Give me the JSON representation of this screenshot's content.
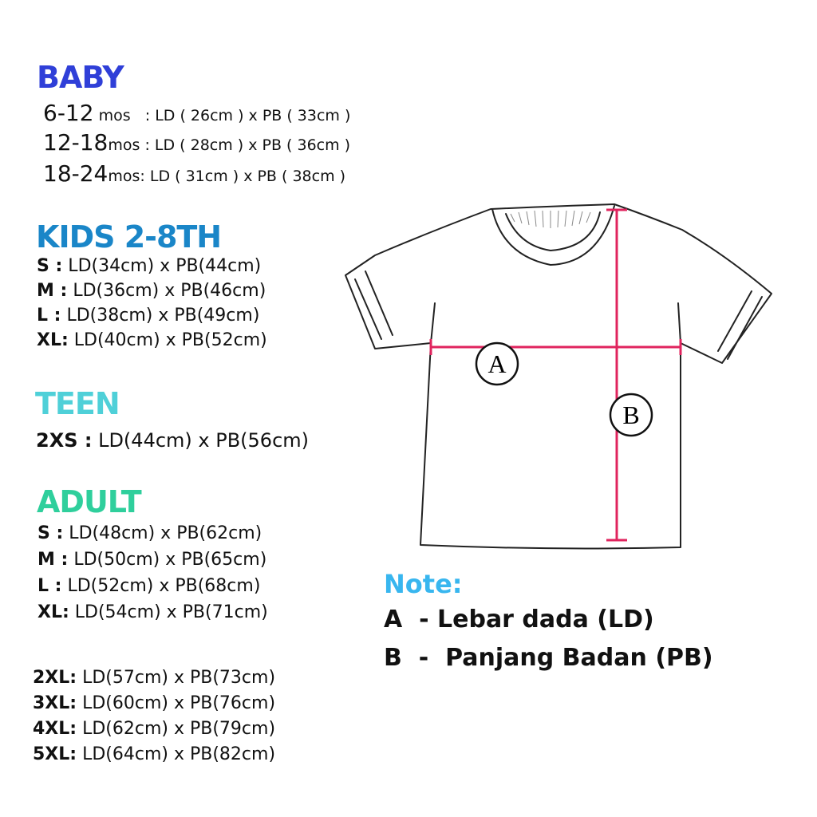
{
  "colors": {
    "baby": "#2f3fd8",
    "kids": "#1a86c8",
    "teen": "#4fd0d8",
    "adult": "#2fcf9c",
    "note": "#38b6ef",
    "measure_line": "#e0245e"
  },
  "sections": {
    "baby": {
      "title": "BABY",
      "rows": [
        {
          "age": "6-12",
          "unit": "mos",
          "spec": "   : LD ( 26cm ) x PB ( 33cm )"
        },
        {
          "age": "12-18",
          "unit": "mos",
          "spec": " : LD ( 28cm ) x PB ( 36cm )"
        },
        {
          "age": "18-24",
          "unit": "mos",
          "spec": ": LD ( 31cm ) x PB ( 38cm )"
        }
      ]
    },
    "kids": {
      "title": "KIDS 2-8TH",
      "rows": [
        {
          "size": "S  :",
          "spec": " LD(34cm) x PB(44cm)"
        },
        {
          "size": "M :",
          "spec": " LD(36cm) x PB(46cm)"
        },
        {
          "size": "L  :",
          "spec": " LD(38cm) x PB(49cm)"
        },
        {
          "size": "XL:",
          "spec": " LD(40cm) x PB(52cm)"
        }
      ]
    },
    "teen": {
      "title": "TEEN",
      "rows": [
        {
          "size": "2XS :",
          "spec": " LD(44cm) x PB(56cm)"
        }
      ]
    },
    "adult": {
      "title": "ADULT",
      "rows": [
        {
          "size": "S  :",
          "spec": " LD(48cm) x PB(62cm)"
        },
        {
          "size": "M :",
          "spec": " LD(50cm) x PB(65cm)"
        },
        {
          "size": "L  :",
          "spec": " LD(52cm) x PB(68cm)"
        },
        {
          "size": "XL:",
          "spec": " LD(54cm) x PB(71cm)"
        },
        {
          "size": "2XL:",
          "spec": " LD(57cm) x PB(73cm)"
        },
        {
          "size": "3XL:",
          "spec": " LD(60cm) x PB(76cm)"
        },
        {
          "size": "4XL:",
          "spec": " LD(62cm) x PB(79cm)"
        },
        {
          "size": "5XL:",
          "spec": " LD(64cm) x PB(82cm)"
        }
      ]
    }
  },
  "diagram": {
    "label_a": "A",
    "label_b": "B"
  },
  "note": {
    "title": "Note:",
    "lines": [
      "A  - Lebar dada (LD)",
      "B  -  Panjang Badan (PB)"
    ]
  }
}
